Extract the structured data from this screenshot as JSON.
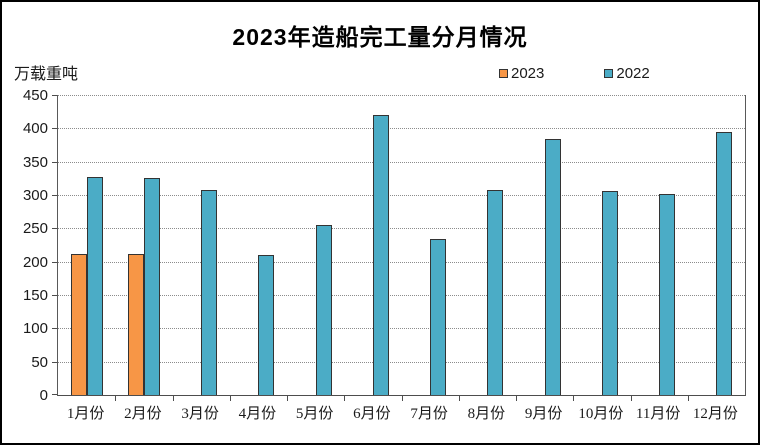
{
  "title": "2023年造船完工量分月情况",
  "unit_label": "万载重吨",
  "legend": {
    "items": [
      {
        "label": "2023",
        "color": "#F79646"
      },
      {
        "label": "2022",
        "color": "#4BACC6"
      }
    ]
  },
  "colors": {
    "series_2023": "#F79646",
    "series_2022": "#4BACC6",
    "bar_border": "#333333",
    "gridline": "#8c8c8c",
    "axis": "#4d4d4d",
    "text": "#1a1a1a",
    "background": "#ffffff",
    "frame_border": "#000000"
  },
  "chart_data": {
    "type": "bar",
    "title": "2023年造船完工量分月情况",
    "ylabel": "万载重吨",
    "xlabel": "",
    "categories": [
      "1月份",
      "2月份",
      "3月份",
      "4月份",
      "5月份",
      "6月份",
      "7月份",
      "8月份",
      "9月份",
      "10月份",
      "11月份",
      "12月份"
    ],
    "series": [
      {
        "name": "2023",
        "color": "#F79646",
        "values": [
          211,
          212,
          null,
          null,
          null,
          null,
          null,
          null,
          null,
          null,
          null,
          null
        ]
      },
      {
        "name": "2022",
        "color": "#4BACC6",
        "values": [
          327,
          326,
          308,
          210,
          255,
          420,
          234,
          308,
          384,
          306,
          301,
          395
        ]
      }
    ],
    "ylim": [
      0,
      450
    ],
    "ytick_step": 50,
    "yticks": [
      0,
      50,
      100,
      150,
      200,
      250,
      300,
      350,
      400,
      450
    ],
    "grid": "horizontal-dotted",
    "legend_position": "top-right",
    "bar_outline": true
  }
}
